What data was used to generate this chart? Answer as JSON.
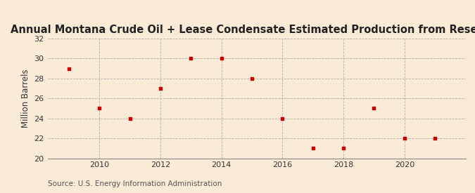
{
  "title": "Annual Montana Crude Oil + Lease Condensate Estimated Production from Reserves",
  "ylabel": "Million Barrels",
  "source": "Source: U.S. Energy Information Administration",
  "background_color": "#faebd7",
  "plot_background_color": "#faebd7",
  "marker_color": "#cc0000",
  "grid_color": "#aaaaaa",
  "years": [
    2009,
    2010,
    2011,
    2012,
    2013,
    2014,
    2015,
    2016,
    2017,
    2018,
    2019,
    2020,
    2021
  ],
  "values": [
    29.0,
    25.0,
    24.0,
    27.0,
    30.0,
    30.0,
    28.0,
    24.0,
    21.0,
    21.0,
    25.0,
    22.0,
    22.0
  ],
  "ylim": [
    20,
    32
  ],
  "yticks": [
    20,
    22,
    24,
    26,
    28,
    30,
    32
  ],
  "xlim": [
    2008.3,
    2022.0
  ],
  "xticks": [
    2010,
    2012,
    2014,
    2016,
    2018,
    2020
  ],
  "title_fontsize": 10.5,
  "label_fontsize": 8.5,
  "tick_fontsize": 8,
  "source_fontsize": 7.5
}
